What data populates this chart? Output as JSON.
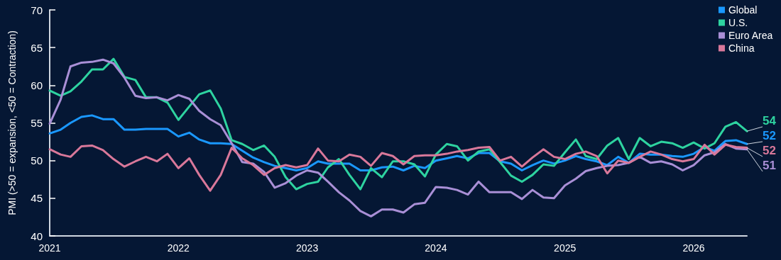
{
  "chart_data": {
    "type": "line",
    "ylabel": "PMI (>50 = expansion, <50 = Contraction)",
    "x": [
      "2021-01",
      "2021-02",
      "2021-03",
      "2021-04",
      "2021-05",
      "2021-06",
      "2021-07",
      "2021-08",
      "2021-09",
      "2021-10",
      "2021-11",
      "2021-12",
      "2022-01",
      "2022-02",
      "2022-03",
      "2022-04",
      "2022-05",
      "2022-06",
      "2022-07",
      "2022-08",
      "2022-09",
      "2022-10",
      "2022-11",
      "2022-12",
      "2023-01",
      "2023-02",
      "2023-03",
      "2023-04",
      "2023-05",
      "2023-06",
      "2023-07",
      "2023-08",
      "2023-09",
      "2023-10",
      "2023-11",
      "2023-12",
      "2024-01",
      "2024-02",
      "2024-03",
      "2024-04",
      "2024-05",
      "2024-06",
      "2024-07",
      "2024-08",
      "2024-09",
      "2024-10",
      "2024-11",
      "2024-12",
      "2025-01",
      "2025-02",
      "2025-03",
      "2025-04",
      "2025-05",
      "2025-06",
      "2025-07",
      "2025-08",
      "2025-09",
      "2025-10",
      "2025-11",
      "2025-12",
      "2026-01",
      "2026-02",
      "2026-03",
      "2026-04",
      "2026-05",
      "2026-06"
    ],
    "series": [
      {
        "name": "Global",
        "color": "#1a98ff",
        "values": [
          53.6,
          54.1,
          55.0,
          55.8,
          56.0,
          55.5,
          55.5,
          54.1,
          54.1,
          54.2,
          54.2,
          54.2,
          53.2,
          53.7,
          52.8,
          52.3,
          52.3,
          52.2,
          51.3,
          50.4,
          49.8,
          49.3,
          49.0,
          48.7,
          49.0,
          49.9,
          49.6,
          49.6,
          49.6,
          48.7,
          48.7,
          49.1,
          49.2,
          48.7,
          49.3,
          49.0,
          50.0,
          50.3,
          50.6,
          50.3,
          51.0,
          51.0,
          49.9,
          49.6,
          48.7,
          49.4,
          50.0,
          49.6,
          50.0,
          50.6,
          50.2,
          49.9,
          49.4,
          50.5,
          49.7,
          50.9,
          50.8,
          50.8,
          50.6,
          50.5,
          50.9,
          51.8,
          51.3,
          52.6,
          52.7,
          52.2
        ],
        "value_labels": [
          null,
          null,
          null,
          null,
          null,
          null,
          null,
          null,
          null,
          null,
          null,
          null,
          null,
          null,
          null,
          null,
          null,
          null,
          null,
          null,
          null,
          null,
          null,
          null,
          null,
          null,
          null,
          null,
          null,
          null,
          null,
          null,
          null,
          null,
          null,
          null,
          null,
          null,
          null,
          null,
          null,
          null,
          null,
          null,
          null,
          null,
          null,
          null,
          null,
          null,
          null,
          null,
          null,
          null,
          null,
          null,
          null,
          null,
          null,
          null,
          null,
          null,
          null,
          null,
          null,
          "52"
        ]
      },
      {
        "name": "U.S.",
        "color": "#2ed3a0",
        "values": [
          59.3,
          58.6,
          59.2,
          60.5,
          62.1,
          62.1,
          63.5,
          61.1,
          60.7,
          58.4,
          58.4,
          57.7,
          55.4,
          57.2,
          58.8,
          59.3,
          56.9,
          52.7,
          52.2,
          51.4,
          52.0,
          50.5,
          47.8,
          46.2,
          46.9,
          47.2,
          49.1,
          50.2,
          48.1,
          46.2,
          49.0,
          47.8,
          49.9,
          49.9,
          49.5,
          47.9,
          50.8,
          52.2,
          51.9,
          50.0,
          51.2,
          51.5,
          49.8,
          48.0,
          47.2,
          48.1,
          49.5,
          49.3,
          51.1,
          52.8,
          50.6,
          50.2,
          52.0,
          53.0,
          50.2,
          53.0,
          51.9,
          52.5,
          52.3,
          51.7,
          52.4,
          51.6,
          52.3,
          54.5,
          55.1,
          53.9
        ],
        "value_labels": [
          null,
          null,
          null,
          null,
          null,
          null,
          null,
          null,
          null,
          null,
          null,
          null,
          null,
          null,
          null,
          null,
          null,
          null,
          null,
          null,
          null,
          null,
          null,
          null,
          null,
          null,
          null,
          null,
          null,
          null,
          null,
          null,
          null,
          null,
          null,
          null,
          null,
          null,
          null,
          null,
          null,
          null,
          null,
          null,
          null,
          null,
          null,
          null,
          null,
          null,
          null,
          null,
          null,
          null,
          null,
          null,
          null,
          null,
          null,
          null,
          null,
          null,
          null,
          null,
          null,
          "54"
        ]
      },
      {
        "name": "Euro Area",
        "color": "#a98fd6",
        "values": [
          54.9,
          58.1,
          62.5,
          63.0,
          63.1,
          63.4,
          62.9,
          61.0,
          58.6,
          58.3,
          58.4,
          58.0,
          58.7,
          58.2,
          56.6,
          55.5,
          54.7,
          52.3,
          49.8,
          49.6,
          48.5,
          46.4,
          47.0,
          48.0,
          48.7,
          48.4,
          47.2,
          45.8,
          44.7,
          43.3,
          42.6,
          43.5,
          43.5,
          43.1,
          44.2,
          44.4,
          46.5,
          46.4,
          46.1,
          45.5,
          47.2,
          45.8,
          45.8,
          45.8,
          44.9,
          46.1,
          45.1,
          45.0,
          46.7,
          47.6,
          48.6,
          49.0,
          49.3,
          49.4,
          49.7,
          50.5,
          49.7,
          49.9,
          49.5,
          48.7,
          49.4,
          50.7,
          51.1,
          52.2,
          51.6,
          51.5
        ],
        "value_labels": [
          null,
          null,
          null,
          null,
          null,
          null,
          null,
          null,
          null,
          null,
          null,
          null,
          null,
          null,
          null,
          null,
          null,
          null,
          null,
          null,
          null,
          null,
          null,
          null,
          null,
          null,
          null,
          null,
          null,
          null,
          null,
          null,
          null,
          null,
          null,
          null,
          null,
          null,
          null,
          null,
          null,
          null,
          null,
          null,
          null,
          null,
          null,
          null,
          null,
          null,
          null,
          null,
          null,
          null,
          null,
          null,
          null,
          null,
          null,
          null,
          null,
          null,
          null,
          null,
          null,
          "51"
        ]
      },
      {
        "name": "China",
        "color": "#d9789a",
        "values": [
          51.5,
          50.8,
          50.5,
          51.9,
          52.0,
          51.4,
          50.2,
          49.2,
          49.9,
          50.5,
          49.9,
          50.9,
          49.0,
          50.3,
          48.1,
          46.0,
          48.1,
          51.7,
          50.3,
          49.4,
          48.1,
          49.0,
          49.4,
          49.1,
          49.4,
          51.6,
          50.0,
          49.9,
          50.8,
          50.5,
          49.3,
          51.0,
          50.6,
          49.5,
          50.6,
          50.7,
          50.7,
          50.9,
          51.2,
          51.4,
          51.7,
          51.8,
          50.0,
          50.5,
          49.2,
          50.4,
          51.5,
          50.5,
          50.2,
          50.9,
          51.2,
          50.6,
          48.3,
          50.0,
          49.7,
          50.5,
          51.2,
          50.8,
          50.2,
          49.9,
          50.2,
          52.1,
          50.8,
          52.1,
          51.8,
          51.7
        ],
        "value_labels": [
          null,
          null,
          null,
          null,
          null,
          null,
          null,
          null,
          null,
          null,
          null,
          null,
          null,
          null,
          null,
          null,
          null,
          null,
          null,
          null,
          null,
          null,
          null,
          null,
          null,
          null,
          null,
          null,
          null,
          null,
          null,
          null,
          null,
          null,
          null,
          null,
          null,
          null,
          null,
          null,
          null,
          null,
          null,
          null,
          null,
          null,
          null,
          null,
          null,
          null,
          null,
          null,
          null,
          null,
          null,
          null,
          null,
          null,
          null,
          null,
          null,
          null,
          null,
          null,
          null,
          "52"
        ]
      }
    ],
    "xlim": [
      "2021-01",
      "2026-06"
    ],
    "xticks": [
      "2021",
      "2022",
      "2023",
      "2024",
      "2025",
      "2026"
    ],
    "ylim": [
      40,
      70
    ],
    "yticks": [
      40,
      45,
      50,
      55,
      60,
      65,
      70
    ],
    "legend": "top right",
    "marker": "none",
    "line_style": "solid"
  }
}
